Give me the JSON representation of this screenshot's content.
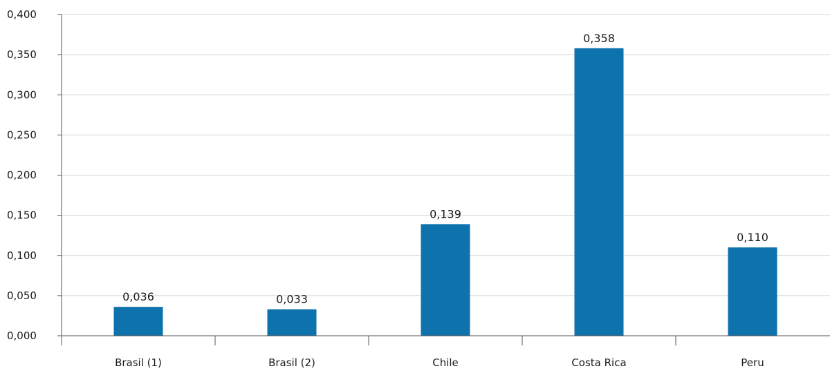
{
  "chart_data": {
    "type": "bar",
    "categories": [
      "Brasil (1)",
      "Brasil (2)",
      "Chile",
      "Costa Rica",
      "Peru"
    ],
    "values": [
      0.036,
      0.033,
      0.139,
      0.358,
      0.11
    ],
    "data_labels": [
      "0,036",
      "0,033",
      "0,139",
      "0,358",
      "0,110"
    ],
    "ylim": [
      0,
      0.4
    ],
    "yticks": [
      0,
      0.05,
      0.1,
      0.15,
      0.2,
      0.25,
      0.3,
      0.35,
      0.4
    ],
    "ytick_labels": [
      "0,000",
      "0,050",
      "0,100",
      "0,150",
      "0,200",
      "0,250",
      "0,300",
      "0,350",
      "0,400"
    ],
    "title": "",
    "xlabel": "",
    "ylabel": "",
    "grid": "horizontal",
    "legend": "none",
    "bar_color": "#0e72ad",
    "grid_color": "#d4d4d4",
    "axis_color": "#555555"
  }
}
